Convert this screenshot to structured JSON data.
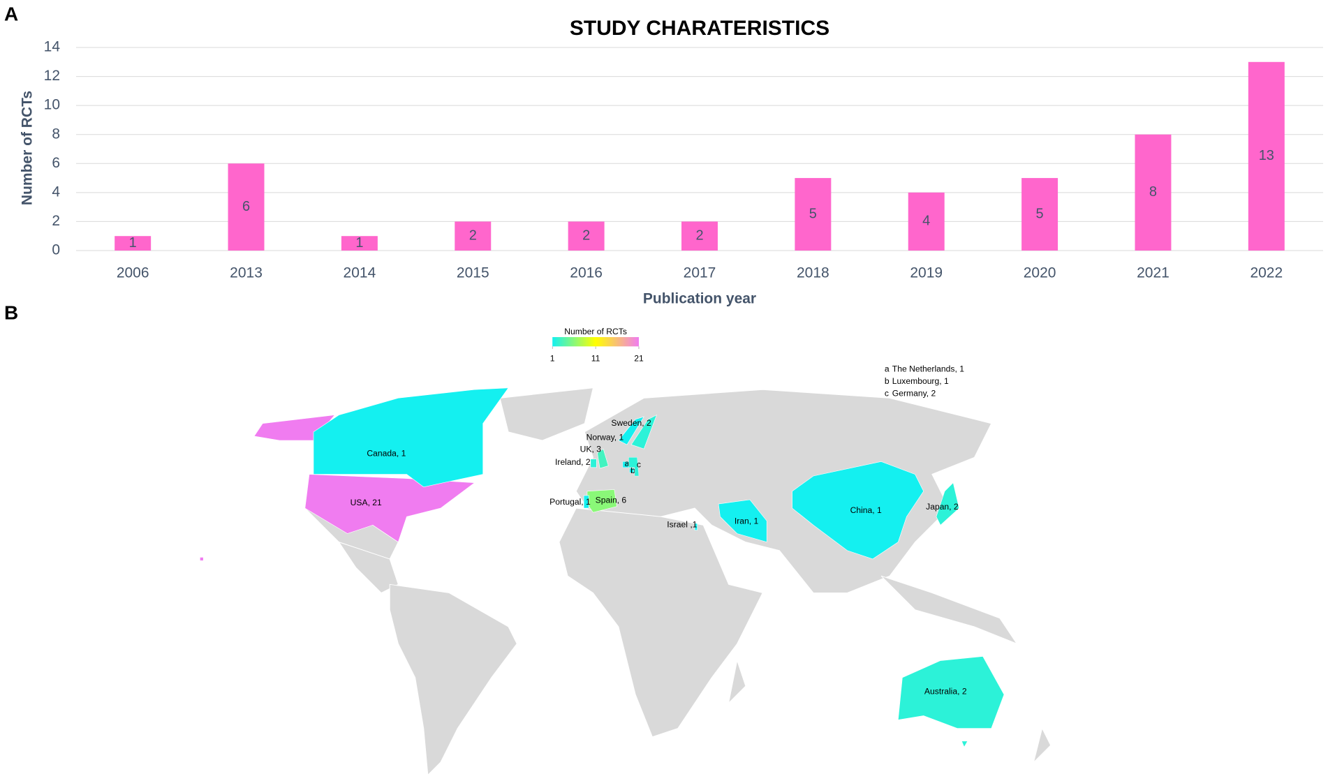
{
  "panel_labels": [
    "A",
    "B"
  ],
  "chart_data": [
    {
      "type": "bar",
      "title": "STUDY CHARATERISTICS",
      "x_label": "Publication year",
      "y_label": "Number of RCTs",
      "categories": [
        "2006",
        "2013",
        "2014",
        "2015",
        "2016",
        "2017",
        "2018",
        "2019",
        "2020",
        "2021",
        "2022"
      ],
      "values": [
        1,
        6,
        1,
        2,
        2,
        2,
        5,
        4,
        5,
        8,
        13
      ],
      "color": "#ff66cc",
      "ylim": [
        0,
        14
      ],
      "yticks": [
        0,
        2,
        4,
        6,
        8,
        10,
        12,
        14
      ],
      "grid": true,
      "data_labels": true
    },
    {
      "type": "choropleth",
      "legend_title": "Number of RCTs",
      "colorlim": [
        1,
        21
      ],
      "colorticks": [
        1,
        11,
        21
      ],
      "colors": [
        "#14f0f0",
        "#ffff00",
        "#f07cf0"
      ],
      "regions": [
        {
          "label": "USA, 21",
          "value": 21
        },
        {
          "label": "Canada, 1",
          "value": 1
        },
        {
          "label": "Spain, 6",
          "value": 6
        },
        {
          "label": "Portugal, 1",
          "value": 1
        },
        {
          "label": "UK, 3",
          "value": 3
        },
        {
          "label": "Ireland, 2",
          "value": 2
        },
        {
          "label": "Norway, 1",
          "value": 1
        },
        {
          "label": "Sweden, 2",
          "value": 2
        },
        {
          "label": "Israel ,1",
          "value": 1
        },
        {
          "label": "Iran, 1",
          "value": 1
        },
        {
          "label": "China, 1",
          "value": 1
        },
        {
          "label": "Japan, 2",
          "value": 2
        },
        {
          "label": "Australia, 2",
          "value": 2
        }
      ],
      "notes": [
        {
          "marker": "a",
          "label": "The Netherlands, 1",
          "value": 1
        },
        {
          "marker": "b",
          "label": "Luxembourg, 1",
          "value": 1
        },
        {
          "marker": "c",
          "label": "Germany, 2",
          "value": 2
        }
      ]
    }
  ]
}
